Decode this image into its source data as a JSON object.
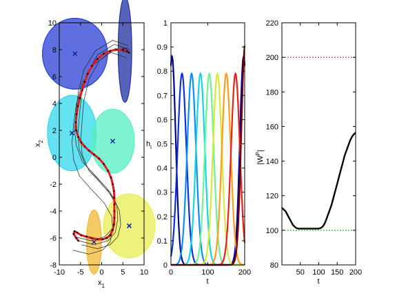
{
  "chart_data": [
    {
      "type": "scatter",
      "xlabel": "x",
      "xlabel_sub": "1",
      "ylabel": "x",
      "ylabel_sub": "2",
      "xlim": [
        -10,
        10
      ],
      "ylim": [
        -8,
        10
      ],
      "xticks": [
        "-10",
        "-5",
        "0",
        "5",
        "10"
      ],
      "yticks": [
        "-8",
        "-6",
        "-4",
        "-2",
        "0",
        "2",
        "4",
        "6",
        "8",
        "10"
      ],
      "grid": false,
      "gaussians": [
        {
          "cx": -6.3,
          "cy": 7.7,
          "rx": 2.4,
          "ry": 1.55,
          "color": "#2a3fd6",
          "marker": "x"
        },
        {
          "cx": 5.5,
          "cy": 8.0,
          "rx": 0.5,
          "ry": 2.3,
          "color": "#1f2fa0",
          "marker": "x"
        },
        {
          "cx": -7.0,
          "cy": 1.8,
          "rx": 1.8,
          "ry": 1.65,
          "color": "#2fd8ee",
          "marker": "x"
        },
        {
          "cx": 2.6,
          "cy": 1.2,
          "rx": 1.6,
          "ry": 1.4,
          "color": "#55efc4",
          "marker": "x"
        },
        {
          "cx": 6.5,
          "cy": -5.1,
          "rx": 1.9,
          "ry": 1.4,
          "color": "#e8ee52",
          "marker": "x"
        },
        {
          "cx": -1.8,
          "cy": -6.3,
          "rx": 0.55,
          "ry": 1.4,
          "color": "#f0b830",
          "marker": "x"
        }
      ],
      "reproductions_x": [
        [
          6.5,
          3.0,
          -1.0,
          -3.5,
          -4.8,
          -5.2,
          -5.6,
          -5.3,
          -3.8,
          -0.8,
          2.0,
          3.6,
          3.8,
          3.2,
          1.5,
          -1.8,
          -5.5
        ],
        [
          6.8,
          3.2,
          -0.5,
          -3.0,
          -4.2,
          -4.6,
          -4.9,
          -4.6,
          -3.0,
          0.0,
          2.8,
          4.2,
          4.5,
          3.8,
          2.0,
          -1.0,
          -4.8
        ],
        [
          6.2,
          2.6,
          -1.5,
          -4.2,
          -5.5,
          -6.0,
          -6.4,
          -6.0,
          -4.6,
          -1.8,
          1.2,
          3.0,
          3.2,
          2.5,
          0.8,
          -2.6,
          -6.4
        ],
        [
          5.8,
          2.2,
          -1.8,
          -4.6,
          -6.0,
          -6.6,
          -7.0,
          -6.6,
          -5.2,
          -2.4,
          0.6,
          2.4,
          2.6,
          2.0,
          0.2,
          -3.0,
          -6.8
        ]
      ],
      "reproductions_y": [
        [
          8.0,
          8.4,
          7.6,
          6.2,
          4.6,
          3.2,
          1.8,
          0.6,
          -0.6,
          -1.6,
          -2.6,
          -3.6,
          -4.6,
          -5.6,
          -6.2,
          -6.5,
          -6.2
        ],
        [
          7.7,
          8.1,
          7.2,
          5.8,
          4.2,
          2.8,
          1.4,
          0.2,
          -1.0,
          -2.0,
          -3.0,
          -4.0,
          -5.0,
          -5.9,
          -6.5,
          -6.8,
          -6.5
        ],
        [
          8.3,
          8.7,
          7.9,
          6.5,
          4.9,
          3.5,
          2.1,
          0.9,
          -0.3,
          -1.3,
          -2.3,
          -3.3,
          -4.3,
          -5.3,
          -5.9,
          -6.2,
          -5.9
        ],
        [
          7.4,
          7.8,
          6.9,
          5.5,
          3.9,
          2.5,
          1.1,
          -0.2,
          -1.4,
          -2.4,
          -3.4,
          -4.4,
          -5.4,
          -6.3,
          -6.9,
          -7.2,
          -6.9
        ]
      ],
      "demonstration_x": [
        6.4,
        6.0,
        5.0,
        3.5,
        2.0,
        0.5,
        -1.0,
        -2.3,
        -3.3,
        -4.0,
        -4.6,
        -5.2,
        -5.6,
        -5.9,
        -6.1,
        -6.0,
        -5.5,
        -4.8,
        -4.0,
        -3.0,
        -1.8,
        -0.6,
        0.5,
        1.5,
        2.2,
        2.6,
        2.9,
        3.0,
        3.0,
        3.0,
        3.0,
        2.9,
        2.6,
        2.0,
        1.2,
        0.2,
        -1.0,
        -2.4,
        -3.6,
        -4.8,
        -5.8,
        -6.4,
        -6.6,
        -6.0,
        -5.5
      ],
      "demonstration_y": [
        7.8,
        7.9,
        8.0,
        8.0,
        7.9,
        7.7,
        7.3,
        6.8,
        6.2,
        5.6,
        5.0,
        4.4,
        3.8,
        3.2,
        2.6,
        2.0,
        1.5,
        1.1,
        0.8,
        0.5,
        0.2,
        -0.1,
        -0.5,
        -1.0,
        -1.5,
        -2.0,
        -2.5,
        -3.0,
        -3.5,
        -4.0,
        -4.5,
        -5.0,
        -5.4,
        -5.8,
        -6.0,
        -6.1,
        -6.1,
        -6.0,
        -5.9,
        -5.8,
        -5.6,
        -5.5,
        -5.7,
        -6.0,
        -6.2
      ],
      "colors": {
        "demonstration": "#e41a1c",
        "demonstration_dots": "#000000",
        "reproduction": "#222222"
      }
    },
    {
      "type": "line",
      "xlabel": "t",
      "ylabel": "h",
      "ylabel_sub": "i",
      "xlim": [
        0,
        200
      ],
      "ylim": [
        0,
        1
      ],
      "xticks": [
        "0",
        "100",
        "200"
      ],
      "xtick_values": [
        0,
        100,
        200
      ],
      "yticks": [
        "0",
        "0.1",
        "0.2",
        "0.3",
        "0.4",
        "0.5",
        "0.6",
        "0.7",
        "0.8",
        "0.9",
        "1"
      ],
      "grid": false,
      "series": [
        {
          "centers": [
            3,
            197
          ],
          "peak": 0.86,
          "width": 10,
          "color": "#00008f"
        },
        {
          "centers": [
            30
          ],
          "peak": 0.79,
          "width": 12,
          "color": "#0a2ee0"
        },
        {
          "centers": [
            56
          ],
          "peak": 0.79,
          "width": 12,
          "color": "#0b8cff"
        },
        {
          "centers": [
            80
          ],
          "peak": 0.79,
          "width": 12,
          "color": "#12d6e6"
        },
        {
          "centers": [
            104
          ],
          "peak": 0.79,
          "width": 12,
          "color": "#6ff09a"
        },
        {
          "centers": [
            126
          ],
          "peak": 0.79,
          "width": 12,
          "color": "#d8e83a"
        },
        {
          "centers": [
            150
          ],
          "peak": 0.79,
          "width": 12,
          "color": "#ff9c1a"
        },
        {
          "centers": [
            175
          ],
          "peak": 0.79,
          "width": 12,
          "color": "#e8201a"
        },
        {
          "centers": [
            201
          ],
          "peak": 0.91,
          "width": 10,
          "color": "#7a0000"
        }
      ]
    },
    {
      "type": "line",
      "xlabel": "t",
      "ylabel": "|W",
      "ylabel_sup": "P",
      "ylabel_end": "|",
      "xlim": [
        0,
        200
      ],
      "ylim": [
        80,
        220
      ],
      "xticks": [
        "50",
        "100",
        "150",
        "200"
      ],
      "xtick_values": [
        50,
        100,
        150,
        200
      ],
      "yticks": [
        "80",
        "100",
        "120",
        "140",
        "160",
        "180",
        "200",
        "220"
      ],
      "grid": false,
      "series": [
        {
          "x": [
            0,
            5,
            10,
            15,
            20,
            25,
            30,
            35,
            40,
            45,
            50,
            55,
            60,
            65,
            70,
            75,
            80,
            85,
            90,
            95,
            100,
            105,
            110,
            115,
            120,
            125,
            130,
            135,
            140,
            145,
            150,
            155,
            160,
            165,
            170,
            175,
            180,
            185,
            190,
            195,
            200
          ],
          "y": [
            113,
            112,
            111,
            109,
            107,
            105,
            103,
            102,
            101.2,
            101,
            101,
            101,
            101,
            101,
            101,
            101,
            101,
            101,
            101,
            101,
            101,
            101.3,
            102,
            103.5,
            106,
            109,
            112,
            115,
            119,
            123,
            127,
            131,
            135,
            139,
            143,
            146,
            149,
            152,
            154,
            155.5,
            156.5
          ],
          "color": "#000000"
        }
      ],
      "hlines": [
        {
          "y": 200,
          "color": "#cc0000",
          "style": "dotted"
        },
        {
          "y": 100,
          "color": "#009900",
          "style": "dotted"
        }
      ]
    }
  ]
}
